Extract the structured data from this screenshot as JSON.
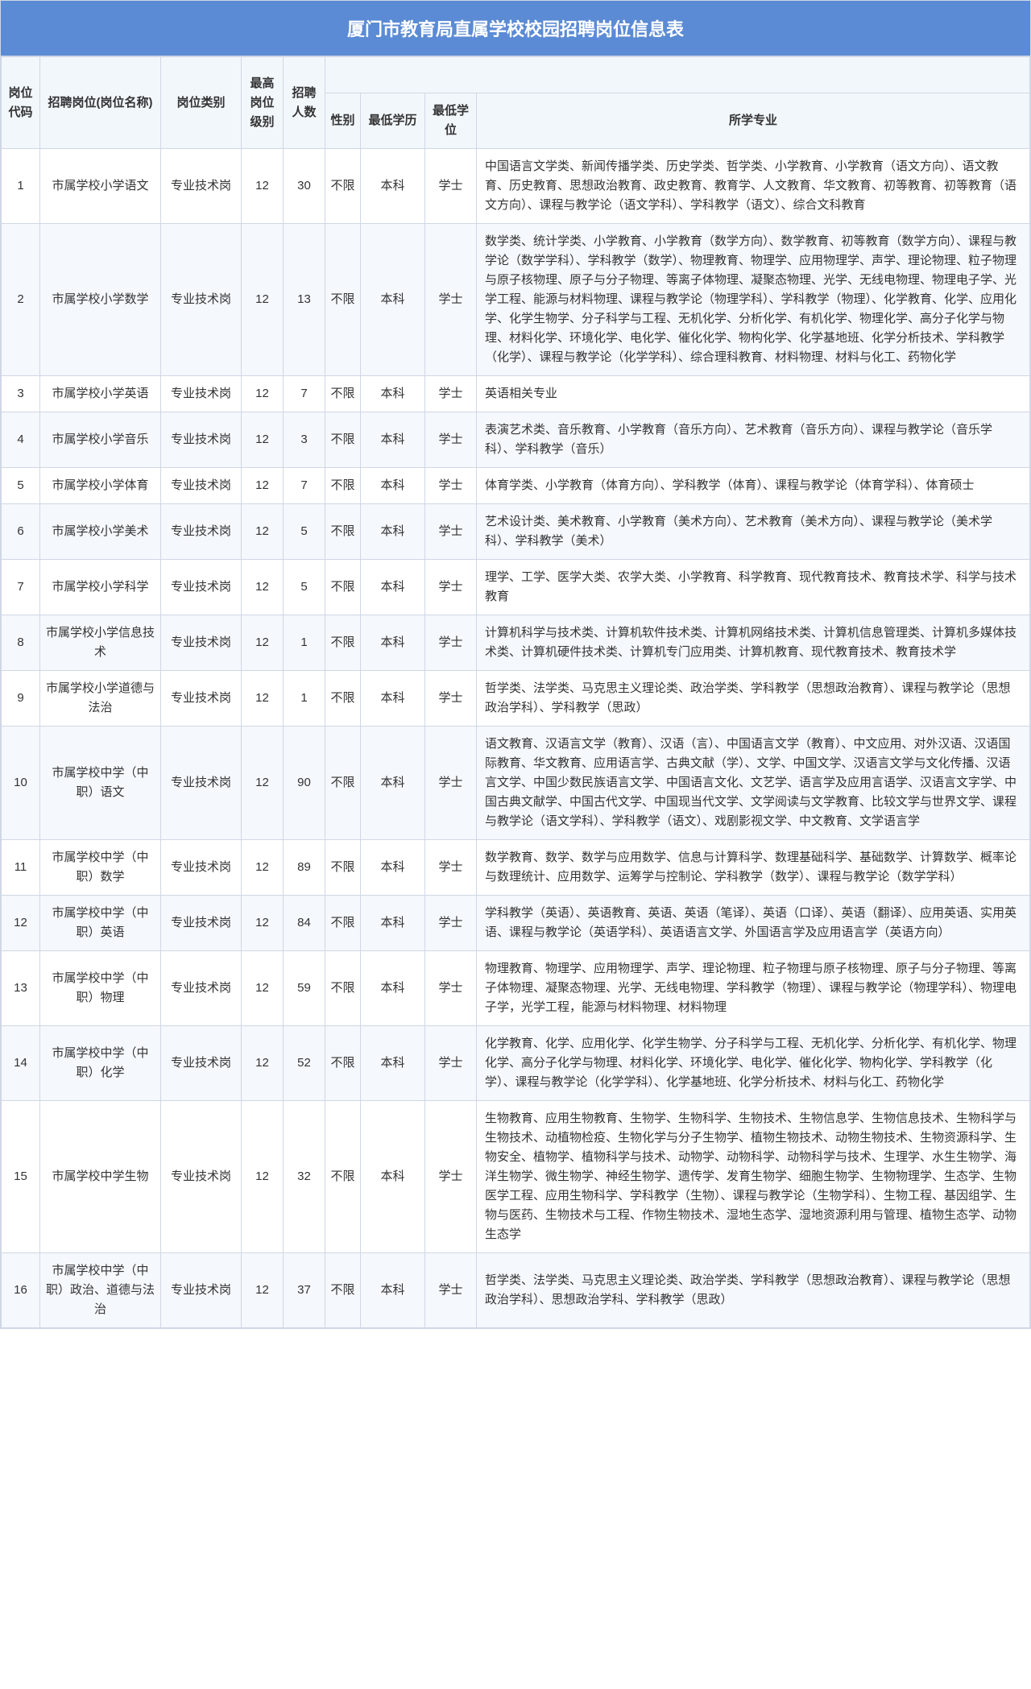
{
  "title": "厦门市教育局直属学校校园招聘岗位信息表",
  "colors": {
    "header_bg": "#5b8bd4",
    "header_text": "#ffffff",
    "border": "#d0d7e5",
    "th_bg": "#f2f7fc",
    "row_even_bg": "#f5f8fc",
    "row_odd_bg": "#ffffff",
    "text": "#333333"
  },
  "typography": {
    "title_fontsize": 22,
    "cell_fontsize": 15,
    "font_family": "Microsoft YaHei"
  },
  "columns": {
    "code": "岗位代码",
    "name": "招聘岗位(岗位名称)",
    "type": "岗位类别",
    "level": "最高岗位级别",
    "count": "招聘人数",
    "gender": "性别",
    "edu": "最低学历",
    "degree": "最低学位",
    "major": "所学专业"
  },
  "rows": [
    {
      "code": "1",
      "name": "市属学校小学语文",
      "type": "专业技术岗",
      "level": "12",
      "count": "30",
      "gender": "不限",
      "edu": "本科",
      "degree": "学士",
      "major": "中国语言文学类、新闻传播学类、历史学类、哲学类、小学教育、小学教育（语文方向）、语文教育、历史教育、思想政治教育、政史教育、教育学、人文教育、华文教育、初等教育、初等教育（语文方向）、课程与教学论（语文学科）、学科教学（语文）、综合文科教育"
    },
    {
      "code": "2",
      "name": "市属学校小学数学",
      "type": "专业技术岗",
      "level": "12",
      "count": "13",
      "gender": "不限",
      "edu": "本科",
      "degree": "学士",
      "major": "数学类、统计学类、小学教育、小学教育（数学方向）、数学教育、初等教育（数学方向）、课程与教学论（数学学科）、学科教学（数学）、物理教育、物理学、应用物理学、声学、理论物理、粒子物理与原子核物理、原子与分子物理、等离子体物理、凝聚态物理、光学、无线电物理、物理电子学、光学工程、能源与材料物理、课程与教学论（物理学科）、学科教学（物理）、化学教育、化学、应用化学、化学生物学、分子科学与工程、无机化学、分析化学、有机化学、物理化学、高分子化学与物理、材料化学、环境化学、电化学、催化化学、物构化学、化学基地班、化学分析技术、学科教学（化学）、课程与教学论（化学学科）、综合理科教育、材料物理、材料与化工、药物化学"
    },
    {
      "code": "3",
      "name": "市属学校小学英语",
      "type": "专业技术岗",
      "level": "12",
      "count": "7",
      "gender": "不限",
      "edu": "本科",
      "degree": "学士",
      "major": "英语相关专业"
    },
    {
      "code": "4",
      "name": "市属学校小学音乐",
      "type": "专业技术岗",
      "level": "12",
      "count": "3",
      "gender": "不限",
      "edu": "本科",
      "degree": "学士",
      "major": "表演艺术类、音乐教育、小学教育（音乐方向）、艺术教育（音乐方向）、课程与教学论（音乐学科）、学科教学（音乐）"
    },
    {
      "code": "5",
      "name": "市属学校小学体育",
      "type": "专业技术岗",
      "level": "12",
      "count": "7",
      "gender": "不限",
      "edu": "本科",
      "degree": "学士",
      "major": "体育学类、小学教育（体育方向）、学科教学（体育）、课程与教学论（体育学科）、体育硕士"
    },
    {
      "code": "6",
      "name": "市属学校小学美术",
      "type": "专业技术岗",
      "level": "12",
      "count": "5",
      "gender": "不限",
      "edu": "本科",
      "degree": "学士",
      "major": "艺术设计类、美术教育、小学教育（美术方向）、艺术教育（美术方向）、课程与教学论（美术学科）、学科教学（美术）"
    },
    {
      "code": "7",
      "name": "市属学校小学科学",
      "type": "专业技术岗",
      "level": "12",
      "count": "5",
      "gender": "不限",
      "edu": "本科",
      "degree": "学士",
      "major": "理学、工学、医学大类、农学大类、小学教育、科学教育、现代教育技术、教育技术学、科学与技术教育"
    },
    {
      "code": "8",
      "name": "市属学校小学信息技术",
      "type": "专业技术岗",
      "level": "12",
      "count": "1",
      "gender": "不限",
      "edu": "本科",
      "degree": "学士",
      "major": "计算机科学与技术类、计算机软件技术类、计算机网络技术类、计算机信息管理类、计算机多媒体技术类、计算机硬件技术类、计算机专门应用类、计算机教育、现代教育技术、教育技术学"
    },
    {
      "code": "9",
      "name": "市属学校小学道德与法治",
      "type": "专业技术岗",
      "level": "12",
      "count": "1",
      "gender": "不限",
      "edu": "本科",
      "degree": "学士",
      "major": "哲学类、法学类、马克思主义理论类、政治学类、学科教学（思想政治教育）、课程与教学论（思想政治学科）、学科教学（思政）"
    },
    {
      "code": "10",
      "name": "市属学校中学（中职）语文",
      "type": "专业技术岗",
      "level": "12",
      "count": "90",
      "gender": "不限",
      "edu": "本科",
      "degree": "学士",
      "major": "语文教育、汉语言文学（教育）、汉语（言）、中国语言文学（教育）、中文应用、对外汉语、汉语国际教育、华文教育、应用语言学、古典文献（学）、文学、中国文学、汉语言文学与文化传播、汉语言文学、中国少数民族语言文学、中国语言文化、文艺学、语言学及应用言语学、汉语言文字学、中国古典文献学、中国古代文学、中国现当代文学、文学阅读与文学教育、比较文学与世界文学、课程与教学论（语文学科）、学科教学（语文）、戏剧影视文学、中文教育、文学语言学"
    },
    {
      "code": "11",
      "name": "市属学校中学（中职）数学",
      "type": "专业技术岗",
      "level": "12",
      "count": "89",
      "gender": "不限",
      "edu": "本科",
      "degree": "学士",
      "major": "数学教育、数学、数学与应用数学、信息与计算科学、数理基础科学、基础数学、计算数学、概率论与数理统计、应用数学、运筹学与控制论、学科教学（数学）、课程与教学论（数学学科）"
    },
    {
      "code": "12",
      "name": "市属学校中学（中职）英语",
      "type": "专业技术岗",
      "level": "12",
      "count": "84",
      "gender": "不限",
      "edu": "本科",
      "degree": "学士",
      "major": "学科教学（英语）、英语教育、英语、英语（笔译）、英语（口译）、英语（翻译）、应用英语、实用英语、课程与教学论（英语学科）、英语语言文学、外国语言学及应用语言学（英语方向）"
    },
    {
      "code": "13",
      "name": "市属学校中学（中职）物理",
      "type": "专业技术岗",
      "level": "12",
      "count": "59",
      "gender": "不限",
      "edu": "本科",
      "degree": "学士",
      "major": "物理教育、物理学、应用物理学、声学、理论物理、粒子物理与原子核物理、原子与分子物理、等离子体物理、凝聚态物理、光学、无线电物理、学科教学（物理）、课程与教学论（物理学科）、物理电子学，光学工程，能源与材料物理、材料物理"
    },
    {
      "code": "14",
      "name": "市属学校中学（中职）化学",
      "type": "专业技术岗",
      "level": "12",
      "count": "52",
      "gender": "不限",
      "edu": "本科",
      "degree": "学士",
      "major": "化学教育、化学、应用化学、化学生物学、分子科学与工程、无机化学、分析化学、有机化学、物理化学、高分子化学与物理、材料化学、环境化学、电化学、催化化学、物构化学、学科教学（化学）、课程与教学论（化学学科）、化学基地班、化学分析技术、材料与化工、药物化学"
    },
    {
      "code": "15",
      "name": "市属学校中学生物",
      "type": "专业技术岗",
      "level": "12",
      "count": "32",
      "gender": "不限",
      "edu": "本科",
      "degree": "学士",
      "major": "生物教育、应用生物教育、生物学、生物科学、生物技术、生物信息学、生物信息技术、生物科学与生物技术、动植物检疫、生物化学与分子生物学、植物生物技术、动物生物技术、生物资源科学、生物安全、植物学、植物科学与技术、动物学、动物科学、动物科学与技术、生理学、水生生物学、海洋生物学、微生物学、神经生物学、遗传学、发育生物学、细胞生物学、生物物理学、生态学、生物医学工程、应用生物科学、学科教学（生物）、课程与教学论（生物学科）、生物工程、基因组学、生物与医药、生物技术与工程、作物生物技术、湿地生态学、湿地资源利用与管理、植物生态学、动物生态学"
    },
    {
      "code": "16",
      "name": "市属学校中学（中职）政治、道德与法治",
      "type": "专业技术岗",
      "level": "12",
      "count": "37",
      "gender": "不限",
      "edu": "本科",
      "degree": "学士",
      "major": "哲学类、法学类、马克思主义理论类、政治学类、学科教学（思想政治教育）、课程与教学论（思想政治学科）、思想政治学科、学科教学（思政）"
    }
  ]
}
